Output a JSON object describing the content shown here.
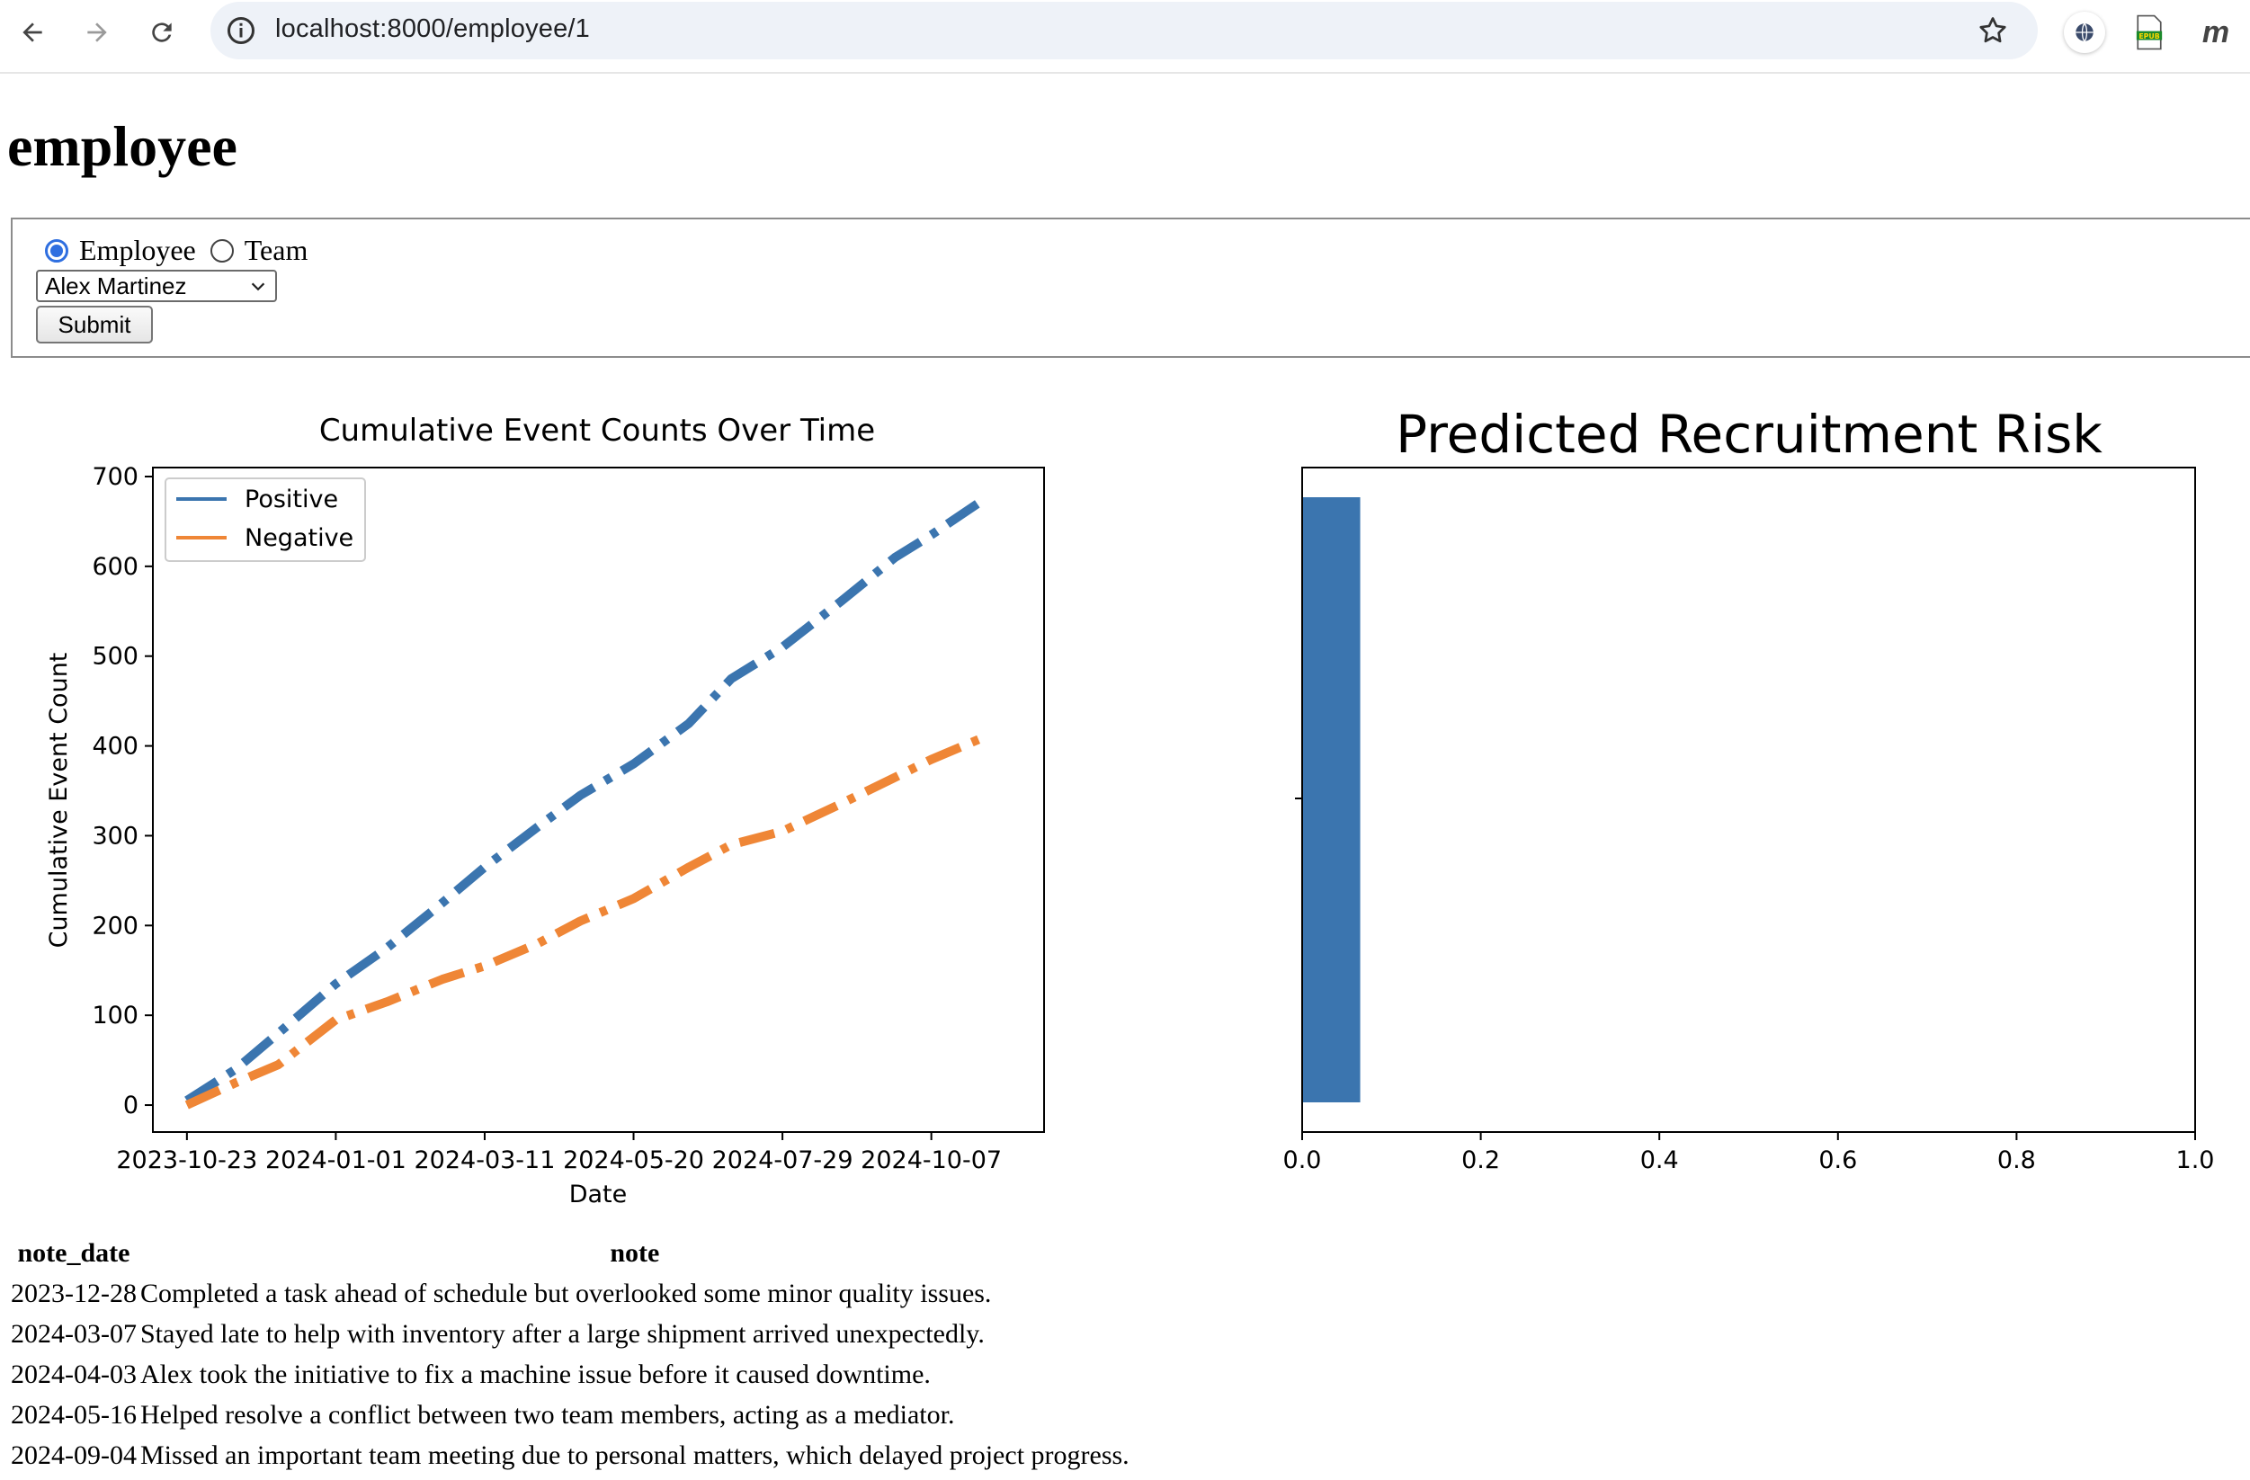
{
  "browser": {
    "url": "localhost:8000/employee/1"
  },
  "page": {
    "title": "employee"
  },
  "form": {
    "radio_options": [
      {
        "label": "Employee",
        "checked": true
      },
      {
        "label": "Team",
        "checked": false
      }
    ],
    "select_value": "Alex Martinez",
    "submit_label": "Submit"
  },
  "colors": {
    "positive": "#3b75af",
    "negative": "#ef8636",
    "bar": "#3b75af",
    "radio_accent": "#2f6fe0"
  },
  "chart_data": [
    {
      "type": "line",
      "title": "Cumulative Event Counts Over Time",
      "xlabel": "Date",
      "ylabel": "Cumulative Event Count",
      "x_ticks": [
        "2023-10-23",
        "2024-01-01",
        "2024-03-11",
        "2024-05-20",
        "2024-07-29",
        "2024-10-07"
      ],
      "y_ticks": [
        0,
        100,
        200,
        300,
        400,
        500,
        600,
        700
      ],
      "xlim": [
        "2023-10-07",
        "2024-11-29"
      ],
      "ylim": [
        -30,
        710
      ],
      "legend": "top-left",
      "line_style": "dashdot",
      "series": [
        {
          "name": "Positive",
          "color": "#3b75af",
          "points": [
            [
              "2023-10-23",
              5
            ],
            [
              "2023-11-15",
              40
            ],
            [
              "2023-12-05",
              80
            ],
            [
              "2024-01-01",
              135
            ],
            [
              "2024-01-25",
              175
            ],
            [
              "2024-02-20",
              225
            ],
            [
              "2024-03-11",
              265
            ],
            [
              "2024-04-05",
              310
            ],
            [
              "2024-04-25",
              345
            ],
            [
              "2024-05-20",
              380
            ],
            [
              "2024-06-15",
              425
            ],
            [
              "2024-07-05",
              475
            ],
            [
              "2024-07-29",
              510
            ],
            [
              "2024-08-25",
              560
            ],
            [
              "2024-09-20",
              610
            ],
            [
              "2024-10-07",
              635
            ],
            [
              "2024-11-01",
              675
            ]
          ]
        },
        {
          "name": "Negative",
          "color": "#ef8636",
          "points": [
            [
              "2023-10-23",
              0
            ],
            [
              "2023-11-15",
              25
            ],
            [
              "2023-12-05",
              45
            ],
            [
              "2024-01-01",
              95
            ],
            [
              "2024-01-25",
              115
            ],
            [
              "2024-02-20",
              140
            ],
            [
              "2024-03-11",
              155
            ],
            [
              "2024-04-05",
              180
            ],
            [
              "2024-04-25",
              205
            ],
            [
              "2024-05-20",
              230
            ],
            [
              "2024-06-15",
              265
            ],
            [
              "2024-07-05",
              290
            ],
            [
              "2024-07-29",
              305
            ],
            [
              "2024-08-25",
              335
            ],
            [
              "2024-09-20",
              365
            ],
            [
              "2024-10-07",
              385
            ],
            [
              "2024-11-01",
              410
            ]
          ]
        }
      ]
    },
    {
      "type": "bar",
      "orientation": "horizontal",
      "title": "Predicted Recruitment Risk",
      "x_ticks": [
        "0.0",
        "0.2",
        "0.4",
        "0.6",
        "0.8",
        "1.0"
      ],
      "xlim": [
        0,
        1
      ],
      "values": [
        0.065
      ]
    }
  ],
  "notes": {
    "headers": [
      "note_date",
      "note"
    ],
    "rows": [
      [
        "2023-12-28",
        "Completed a task ahead of schedule but overlooked some minor quality issues."
      ],
      [
        "2024-03-07",
        "Stayed late to help with inventory after a large shipment arrived unexpectedly."
      ],
      [
        "2024-04-03",
        "Alex took the initiative to fix a machine issue before it caused downtime."
      ],
      [
        "2024-05-16",
        "Helped resolve a conflict between two team members, acting as a mediator."
      ],
      [
        "2024-09-04",
        "Missed an important team meeting due to personal matters, which delayed project progress."
      ]
    ]
  }
}
